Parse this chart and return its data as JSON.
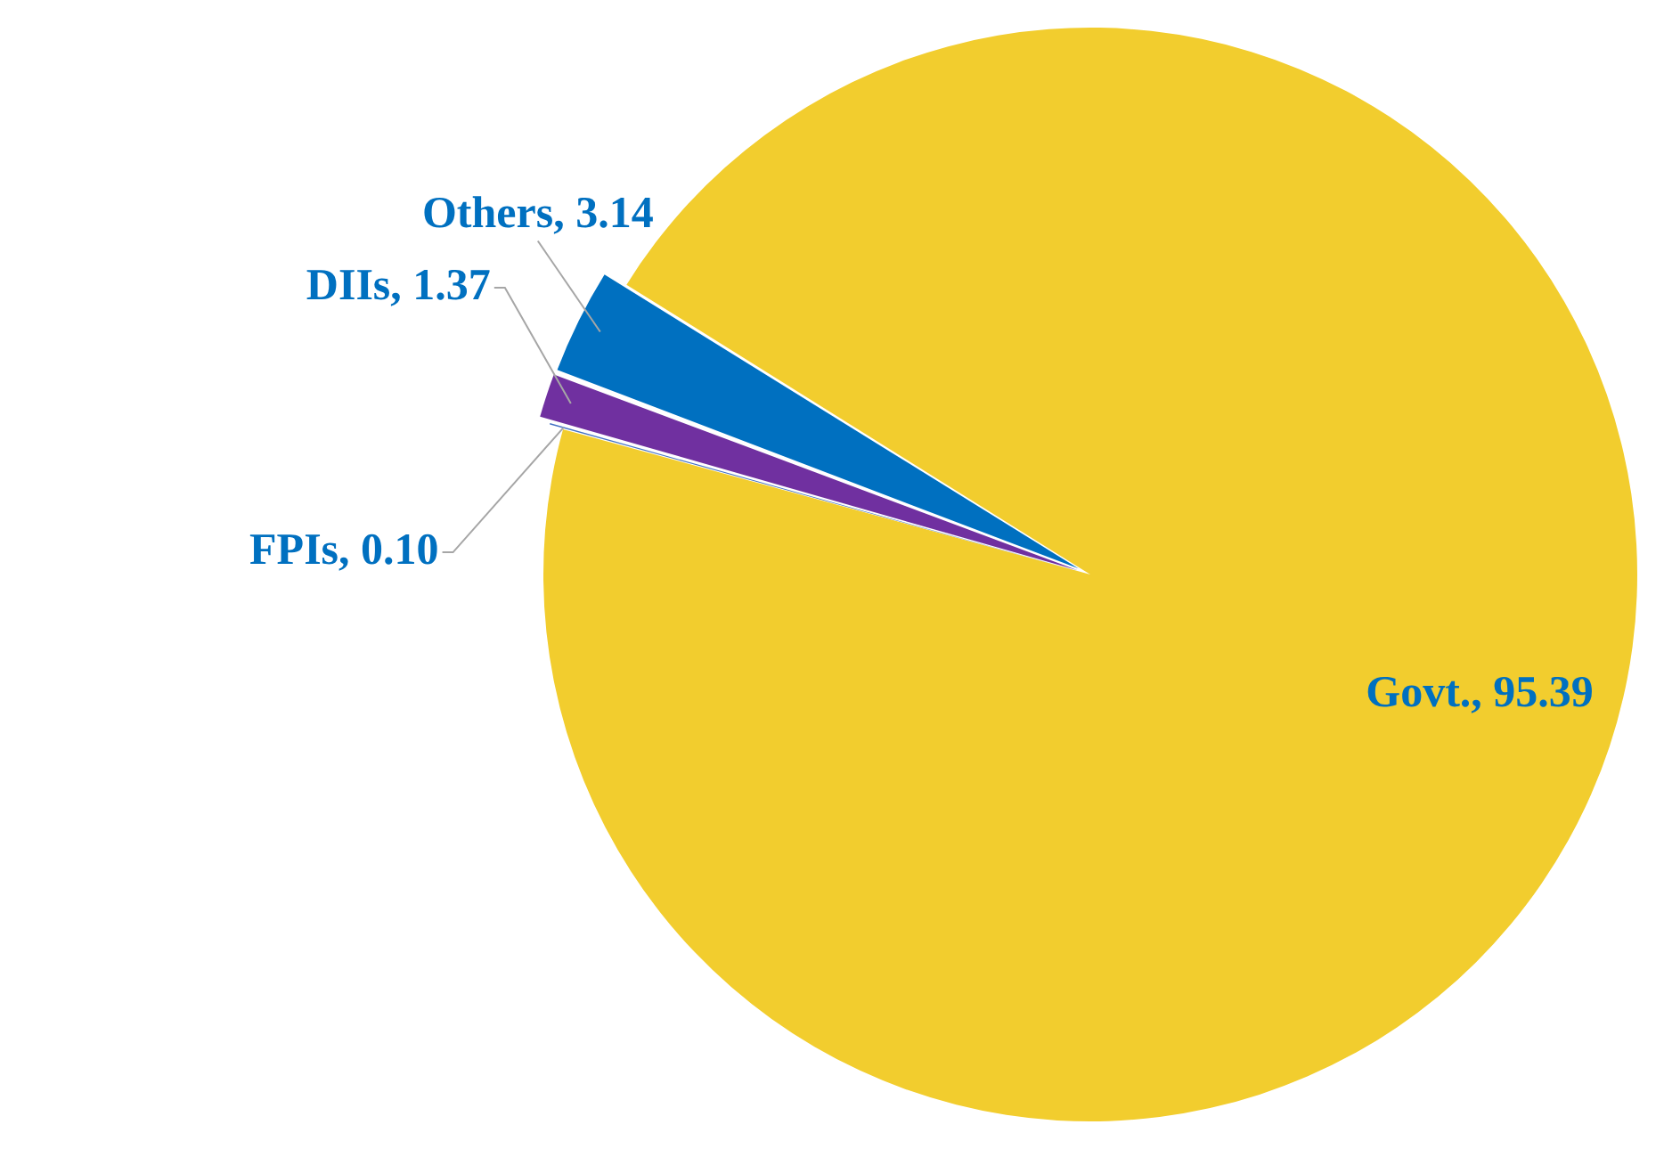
{
  "chart_data": {
    "type": "pie",
    "categories": [
      "Govt.",
      "FPIs",
      "DIIs",
      "Others"
    ],
    "values": [
      95.39,
      0.1,
      1.37,
      3.14
    ],
    "colors": [
      "#f2cd2e",
      "#4472c4",
      "#7030a0",
      "#0070c0"
    ],
    "value_labels": [
      "95.39",
      "0.10",
      "1.37",
      "3.14"
    ],
    "legend": false
  }
}
